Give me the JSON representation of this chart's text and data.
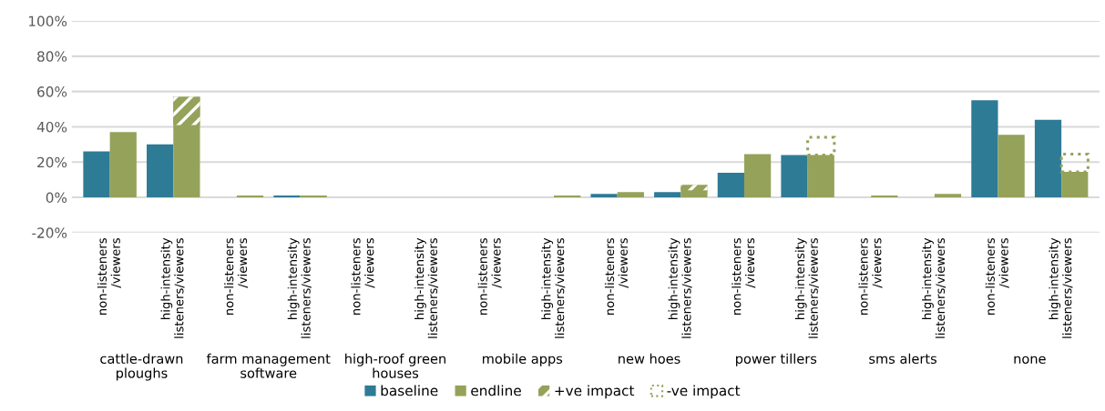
{
  "chart_data": {
    "type": "bar",
    "categories": [
      "non-listeners\n/viewers",
      "high-intensity\nlisteners/viewers",
      "non-listeners\n/viewers",
      "high-intensity\nlisteners/viewers",
      "non-listeners\n/viewers",
      "high-intensity\nlisteners/viewers",
      "non-listeners\n/viewers",
      "high-intensity\nlisteners/viewers",
      "non-listeners\n/viewers",
      "high-intensity\nlisteners/viewers",
      "non-listeners\n/viewers",
      "high-intensity\nlisteners/viewers",
      "non-listeners\n/viewers",
      "high-intensity\nlisteners/viewers",
      "non-listeners\n/viewers",
      "high-intensity\nlisteners/viewers"
    ],
    "series": [
      {
        "name": "baseline",
        "color": "#2e7b96",
        "values": [
          26,
          30,
          null,
          1,
          null,
          null,
          null,
          null,
          2,
          3,
          14,
          24,
          null,
          null,
          55,
          44
        ]
      },
      {
        "name": "endline",
        "color": "#95a25a",
        "values": [
          37,
          57,
          1,
          1,
          null,
          null,
          null,
          1,
          3,
          7,
          24.5,
          24,
          1,
          2,
          35.5,
          14.5
        ]
      },
      {
        "name": "+ve impact",
        "color": "#95a25a",
        "base": [
          null,
          41,
          null,
          null,
          null,
          null,
          null,
          null,
          null,
          4,
          null,
          null,
          null,
          null,
          null,
          null
        ],
        "values": [
          null,
          16,
          null,
          null,
          null,
          null,
          null,
          null,
          null,
          3,
          null,
          null,
          null,
          null,
          null,
          null
        ]
      },
      {
        "name": "-ve impact",
        "color": "#95a25a",
        "line_style": "dotted",
        "base": [
          null,
          null,
          null,
          null,
          null,
          null,
          null,
          null,
          null,
          null,
          null,
          24,
          null,
          null,
          null,
          14.5
        ],
        "values": [
          null,
          null,
          null,
          null,
          null,
          null,
          null,
          null,
          null,
          null,
          null,
          10,
          null,
          null,
          null,
          10
        ]
      }
    ],
    "annotations": [
      "cattle-drawn\nploughs",
      "farm management\nsoftware",
      "high-roof green\nhouses",
      "mobile apps",
      "new hoes",
      "power tillers",
      "sms alerts",
      "none"
    ],
    "ylim": [
      -20,
      100
    ],
    "yticks": [
      {
        "value": -20,
        "label": "-20%"
      },
      {
        "value": 0,
        "label": "0%"
      },
      {
        "value": 20,
        "label": "20%"
      },
      {
        "value": 40,
        "label": "40%"
      },
      {
        "value": 60,
        "label": "60%"
      },
      {
        "value": 80,
        "label": "80%"
      },
      {
        "value": 100,
        "label": "100%"
      }
    ],
    "grid": "y",
    "legend": "bottom"
  }
}
